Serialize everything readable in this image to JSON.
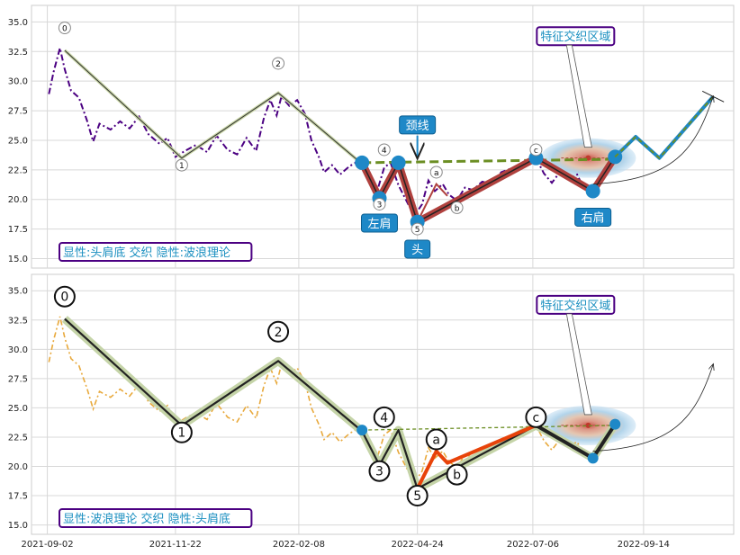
{
  "colors": {
    "purple": "#4B0082",
    "orange_dash": "#E8A93C",
    "neck_green": "#6B8E23",
    "hs_red": "#B0413E",
    "wave_green": "#C5D4A8",
    "blue_dot": "#1E88C7",
    "label_blue": "#1E88C7",
    "box_border": "#4B0082",
    "text_blue": "#1a8fc0",
    "orange_ab": "#E8430A"
  },
  "chart_data": [
    {
      "type": "line",
      "panel": "top",
      "ylim": [
        14.2,
        36.4
      ],
      "yticks": [
        "15.0",
        "17.5",
        "20.0",
        "22.5",
        "25.0",
        "27.5",
        "30.0",
        "32.5",
        "35.0"
      ],
      "grid": true,
      "annotation_box": "显性:头肩底 交织 隐性:波浪理论",
      "wave_labels": [
        {
          "label": "0",
          "x": "2021-09-13",
          "y": 34.5
        },
        {
          "label": "1",
          "x": "2021-11-26",
          "y": 22.9
        },
        {
          "label": "2",
          "x": "2022-01-26",
          "y": 31.5
        },
        {
          "label": "3",
          "x": "2022-03-31",
          "y": 19.6
        },
        {
          "label": "4",
          "x": "2022-04-03",
          "y": 24.2
        },
        {
          "label": "5",
          "x": "2022-04-24",
          "y": 17.5
        },
        {
          "label": "a",
          "x": "2022-05-06",
          "y": 22.3
        },
        {
          "label": "b",
          "x": "2022-05-19",
          "y": 19.3
        },
        {
          "label": "c",
          "x": "2022-07-08",
          "y": 24.2
        }
      ],
      "pattern_labels": [
        {
          "label": "左肩",
          "x": "2022-03-31",
          "y": 18.0
        },
        {
          "label": "头",
          "x": "2022-04-24",
          "y": 15.8
        },
        {
          "label": "右肩",
          "x": "2022-08-13",
          "y": 18.5
        },
        {
          "label": "颈线",
          "x": "2022-04-24",
          "y": 26.3
        }
      ],
      "region_box": {
        "label": "特征交织区域",
        "x": "2022-08-02",
        "y": 33.8
      },
      "price_series": [
        [
          "2021-09-03",
          28.9
        ],
        [
          "2021-09-06",
          30.8
        ],
        [
          "2021-09-10",
          32.8
        ],
        [
          "2021-09-13",
          31.0
        ],
        [
          "2021-09-17",
          29.2
        ],
        [
          "2021-09-22",
          28.6
        ],
        [
          "2021-09-27",
          26.7
        ],
        [
          "2021-10-01",
          24.9
        ],
        [
          "2021-10-05",
          26.4
        ],
        [
          "2021-10-12",
          25.9
        ],
        [
          "2021-10-18",
          26.6
        ],
        [
          "2021-10-24",
          26.0
        ],
        [
          "2021-10-30",
          27.0
        ],
        [
          "2021-11-05",
          25.5
        ],
        [
          "2021-11-12",
          24.7
        ],
        [
          "2021-11-17",
          25.2
        ],
        [
          "2021-11-22",
          23.6
        ],
        [
          "2021-11-28",
          24.1
        ],
        [
          "2021-12-05",
          24.6
        ],
        [
          "2021-12-12",
          24.0
        ],
        [
          "2021-12-18",
          25.4
        ],
        [
          "2021-12-25",
          24.2
        ],
        [
          "2021-12-31",
          23.8
        ],
        [
          "2022-01-06",
          25.2
        ],
        [
          "2022-01-12",
          24.1
        ],
        [
          "2022-01-17",
          26.9
        ],
        [
          "2022-01-21",
          28.4
        ],
        [
          "2022-01-25",
          27.1
        ],
        [
          "2022-01-28",
          28.7
        ],
        [
          "2022-02-02",
          27.9
        ],
        [
          "2022-02-07",
          28.4
        ],
        [
          "2022-02-12",
          27.2
        ],
        [
          "2022-02-16",
          25.0
        ],
        [
          "2022-02-21",
          23.5
        ],
        [
          "2022-02-24",
          22.3
        ],
        [
          "2022-03-01",
          22.9
        ],
        [
          "2022-03-06",
          22.1
        ],
        [
          "2022-03-12",
          22.8
        ],
        [
          "2022-03-17",
          23.2
        ],
        [
          "2022-03-22",
          22.6
        ],
        [
          "2022-03-26",
          21.4
        ],
        [
          "2022-03-30",
          20.9
        ],
        [
          "2022-04-03",
          22.7
        ],
        [
          "2022-04-07",
          23.1
        ],
        [
          "2022-04-12",
          21.2
        ],
        [
          "2022-04-17",
          19.9
        ],
        [
          "2022-04-22",
          18.6
        ],
        [
          "2022-04-27",
          19.6
        ],
        [
          "2022-05-01",
          21.6
        ],
        [
          "2022-05-05",
          20.7
        ],
        [
          "2022-05-10",
          21.3
        ],
        [
          "2022-05-14",
          20.4
        ],
        [
          "2022-05-19",
          19.9
        ],
        [
          "2022-05-24",
          21.0
        ],
        [
          "2022-05-29",
          20.8
        ],
        [
          "2022-06-04",
          21.5
        ],
        [
          "2022-06-10",
          21.3
        ],
        [
          "2022-06-16",
          22.3
        ],
        [
          "2022-06-22",
          22.6
        ],
        [
          "2022-06-28",
          22.9
        ],
        [
          "2022-07-04",
          23.0
        ],
        [
          "2022-07-08",
          23.5
        ],
        [
          "2022-07-13",
          22.2
        ],
        [
          "2022-07-18",
          21.4
        ],
        [
          "2022-07-23",
          22.3
        ],
        [
          "2022-07-28",
          21.7
        ],
        [
          "2022-08-03",
          22.1
        ],
        [
          "2022-08-07",
          21.0
        ],
        [
          "2022-08-12",
          20.6
        ]
      ],
      "wave_line": [
        [
          "2021-09-13",
          32.6
        ],
        [
          "2021-11-26",
          23.5
        ],
        [
          "2022-01-26",
          29.0
        ],
        [
          "2022-03-20",
          23.0
        ],
        [
          "2022-03-31",
          20.1
        ],
        [
          "2022-04-12",
          23.1
        ],
        [
          "2022-04-24",
          18.1
        ],
        [
          "2022-07-08",
          23.5
        ],
        [
          "2022-08-13",
          20.7
        ],
        [
          "2022-08-27",
          23.6
        ]
      ],
      "neckline": [
        [
          "2022-03-20",
          23.1
        ],
        [
          "2022-08-27",
          23.4
        ]
      ],
      "hs_line": [
        [
          "2022-03-20",
          23.1
        ],
        [
          "2022-03-31",
          20.1
        ],
        [
          "2022-04-12",
          23.1
        ],
        [
          "2022-04-24",
          18.1
        ],
        [
          "2022-07-08",
          23.5
        ],
        [
          "2022-08-13",
          20.7
        ],
        [
          "2022-08-27",
          23.6
        ]
      ],
      "ab_line": [
        [
          "2022-04-24",
          18.1
        ],
        [
          "2022-05-06",
          21.3
        ],
        [
          "2022-05-13",
          20.3
        ]
      ],
      "projection": [
        [
          "2022-08-27",
          23.6
        ],
        [
          "2022-09-09",
          25.3
        ],
        [
          "2022-09-24",
          23.5
        ],
        [
          "2022-10-28",
          28.7
        ]
      ],
      "target_arrow": [
        [
          "2022-08-13",
          21.3
        ],
        [
          "2022-10-28",
          28.7
        ]
      ]
    },
    {
      "type": "line",
      "panel": "bottom",
      "ylim": [
        14.2,
        36.4
      ],
      "yticks": [
        "15.0",
        "17.5",
        "20.0",
        "22.5",
        "25.0",
        "27.5",
        "30.0",
        "32.5",
        "35.0"
      ],
      "xticks": [
        "2021-09-02",
        "2021-11-22",
        "2022-02-08",
        "2022-04-24",
        "2022-07-06",
        "2022-09-14"
      ],
      "grid": true,
      "annotation_box": "显性:波浪理论 交织 隐性:头肩底",
      "wave_labels": [
        {
          "label": "0",
          "x": "2021-09-13",
          "y": 34.5
        },
        {
          "label": "1",
          "x": "2021-11-26",
          "y": 22.9
        },
        {
          "label": "2",
          "x": "2022-01-26",
          "y": 31.5
        },
        {
          "label": "3",
          "x": "2022-03-31",
          "y": 19.6
        },
        {
          "label": "4",
          "x": "2022-04-03",
          "y": 24.2
        },
        {
          "label": "5",
          "x": "2022-04-24",
          "y": 17.5
        },
        {
          "label": "a",
          "x": "2022-05-06",
          "y": 22.3
        },
        {
          "label": "b",
          "x": "2022-05-19",
          "y": 19.3
        },
        {
          "label": "c",
          "x": "2022-07-08",
          "y": 24.2
        }
      ],
      "region_box": {
        "label": "特征交织区域",
        "x": "2022-08-02",
        "y": 33.8
      }
    }
  ]
}
